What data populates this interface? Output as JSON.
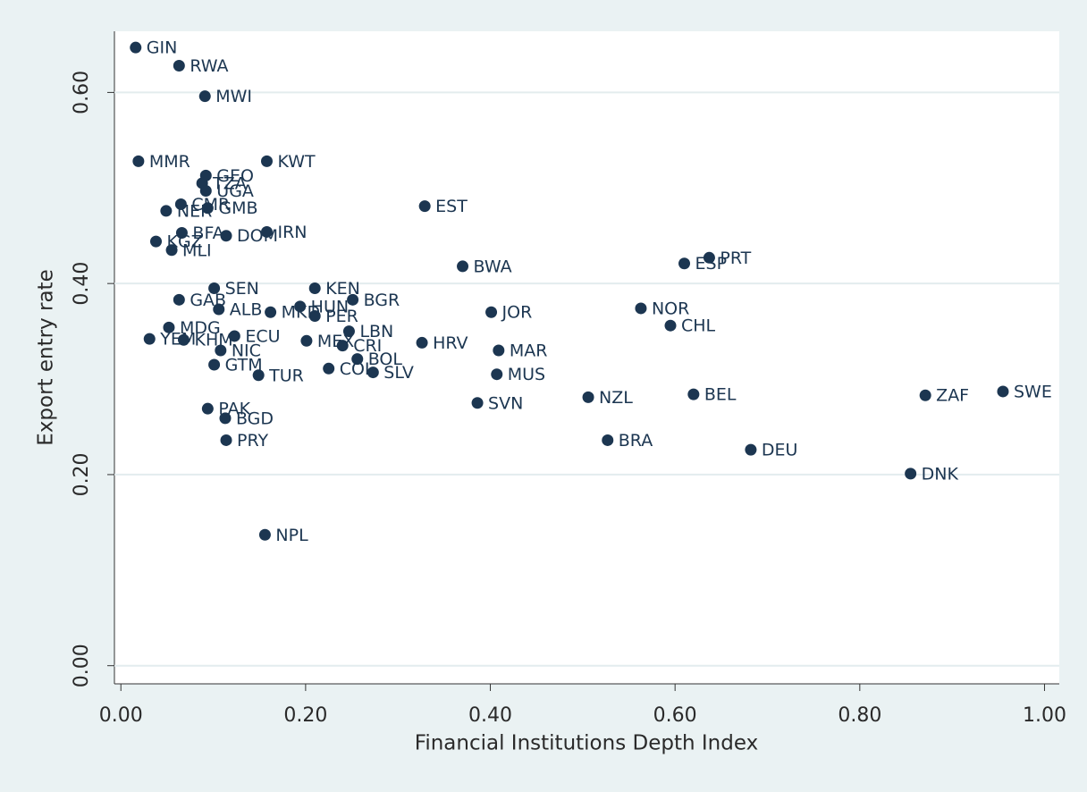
{
  "chart_data": {
    "type": "scatter",
    "x_label": "Financial Institutions Depth Index",
    "y_label": "Export entry rate",
    "color": "#1c3651",
    "grid": true,
    "xlim": [
      -0.007,
      1.016
    ],
    "ylim": [
      -0.019,
      0.664
    ],
    "xticks": [
      {
        "value": 0,
        "label": "0.00"
      },
      {
        "value": 0.2,
        "label": "0.20"
      },
      {
        "value": 0.4,
        "label": "0.40"
      },
      {
        "value": 0.6,
        "label": "0.60"
      },
      {
        "value": 0.8,
        "label": "0.80"
      },
      {
        "value": 1,
        "label": "1.00"
      }
    ],
    "yticks": [
      {
        "value": 0,
        "label": "0.00"
      },
      {
        "value": 0.2,
        "label": "0.20"
      },
      {
        "value": 0.4,
        "label": "0.40"
      },
      {
        "value": 0.6,
        "label": "0.60"
      }
    ],
    "labels": [
      "GIN",
      "RWA",
      "MWI",
      "MMR",
      "KWT",
      "GEO",
      "TZA",
      "UGA",
      "CMR",
      "GMB",
      "NER",
      "BFA",
      "DOM",
      "IRN",
      "KGZ",
      "MLI",
      "EST",
      "BWA",
      "ESP",
      "PRT",
      "NOR",
      "CHL",
      "SEN",
      "KEN",
      "BGR",
      "GAB",
      "ALB",
      "HUN",
      "MKD",
      "PER",
      "JOR",
      "LBN",
      "MDG",
      "YEM",
      "KHM",
      "ECU",
      "MEX",
      "CRI",
      "NIC",
      "BOL",
      "GTM",
      "COL",
      "SLV",
      "TUR",
      "HRV",
      "MAR",
      "MUS",
      "SVN",
      "NZL",
      "BEL",
      "ZAF",
      "SWE",
      "BRA",
      "DEU",
      "DNK",
      "PAK",
      "BGD",
      "PRY",
      "NPL"
    ],
    "x": [
      0.016,
      0.063,
      0.091,
      0.019,
      0.158,
      0.092,
      0.088,
      0.092,
      0.065,
      0.094,
      0.049,
      0.066,
      0.114,
      0.158,
      0.038,
      0.055,
      0.329,
      0.37,
      0.61,
      0.637,
      0.563,
      0.595,
      0.101,
      0.21,
      0.251,
      0.063,
      0.106,
      0.194,
      0.162,
      0.21,
      0.401,
      0.247,
      0.052,
      0.031,
      0.068,
      0.123,
      0.201,
      0.24,
      0.108,
      0.256,
      0.101,
      0.225,
      0.273,
      0.149,
      0.326,
      0.409,
      0.407,
      0.386,
      0.506,
      0.62,
      0.871,
      0.955,
      0.527,
      0.682,
      0.855,
      0.094,
      0.113,
      0.114,
      0.156
    ],
    "values": [
      0.647,
      0.628,
      0.596,
      0.528,
      0.528,
      0.513,
      0.505,
      0.497,
      0.483,
      0.479,
      0.476,
      0.453,
      0.45,
      0.454,
      0.444,
      0.435,
      0.481,
      0.418,
      0.421,
      0.427,
      0.374,
      0.356,
      0.395,
      0.395,
      0.383,
      0.383,
      0.373,
      0.376,
      0.37,
      0.366,
      0.37,
      0.35,
      0.354,
      0.342,
      0.341,
      0.345,
      0.34,
      0.335,
      0.33,
      0.321,
      0.315,
      0.311,
      0.307,
      0.304,
      0.338,
      0.33,
      0.305,
      0.275,
      0.281,
      0.284,
      0.283,
      0.287,
      0.236,
      0.226,
      0.201,
      0.269,
      0.259,
      0.236,
      0.137
    ]
  }
}
